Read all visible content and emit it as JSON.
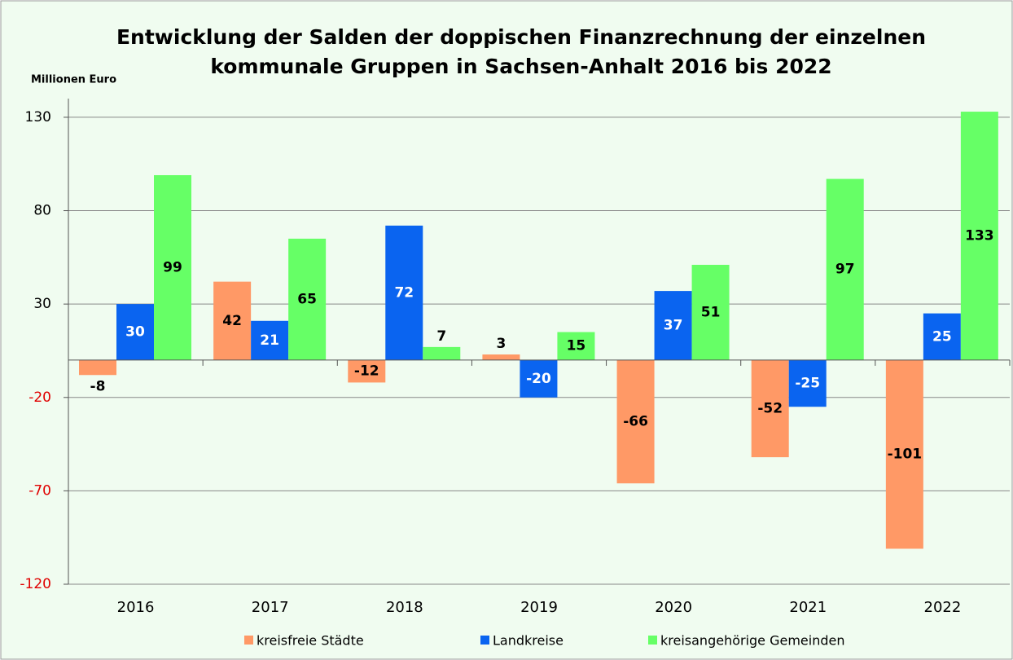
{
  "chart_data": {
    "type": "bar",
    "title": [
      "Entwicklung der Salden der doppischen Finanzrechnung  der einzelnen",
      "kommunale Gruppen in Sachsen-Anhalt 2016 bis 2022"
    ],
    "y_label": "Millionen Euro",
    "categories": [
      "2016",
      "2017",
      "2018",
      "2019",
      "2020",
      "2021",
      "2022"
    ],
    "series": [
      {
        "name": "kreisfreie Städte",
        "color": "#ff9966",
        "label_color": "#000000",
        "values": [
          -8,
          42,
          -12,
          3,
          -66,
          -52,
          -101
        ]
      },
      {
        "name": "Landkreise",
        "color": "#0a64f0",
        "label_color": "#ffffff",
        "values": [
          30,
          21,
          72,
          -20,
          37,
          -25,
          25
        ]
      },
      {
        "name": "kreisangehörige Gemeinden",
        "color": "#66ff66",
        "label_color": "#000000",
        "values": [
          99,
          65,
          7,
          15,
          51,
          97,
          133
        ]
      }
    ],
    "ylim": [
      -120,
      140
    ],
    "yticks": [
      -120,
      -70,
      -20,
      30,
      80,
      130
    ],
    "negative_tick_color": "#e00000",
    "grid": true,
    "legend": "bottom"
  }
}
